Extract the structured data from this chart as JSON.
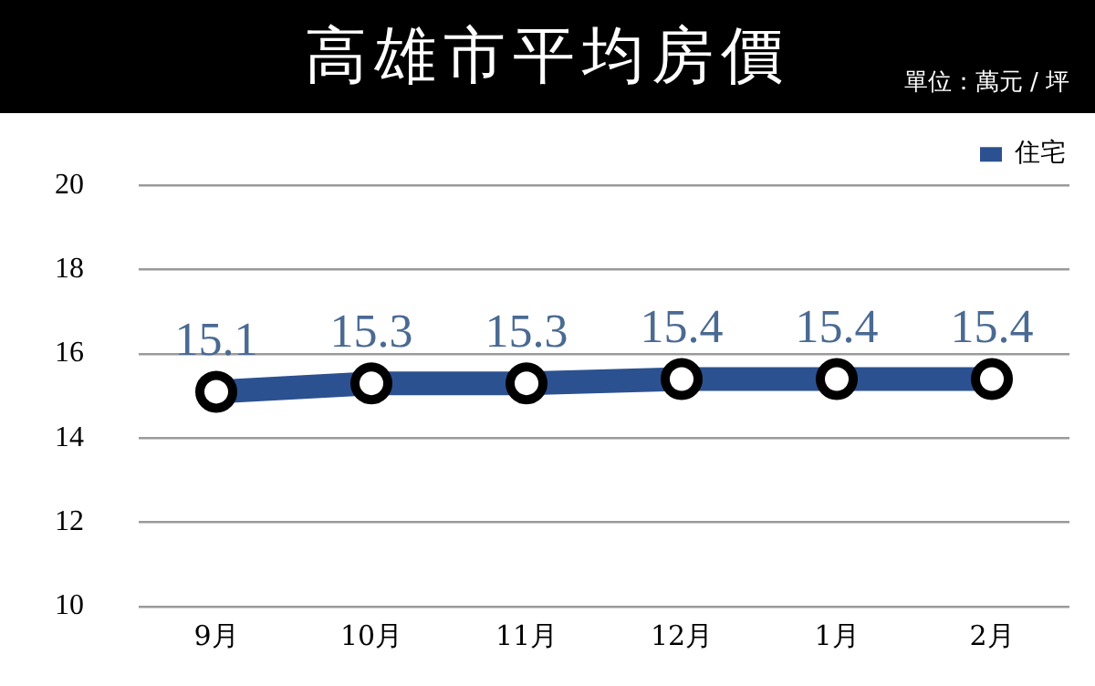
{
  "chart_data": {
    "type": "line",
    "title": "高雄市平均房價",
    "subtitle": "單位：萬元 / 坪",
    "categories": [
      "9月",
      "10月",
      "11月",
      "12月",
      "1月",
      "2月"
    ],
    "series": [
      {
        "name": "住宅",
        "color": "#2b5190",
        "values": [
          15.1,
          15.3,
          15.3,
          15.4,
          15.4,
          15.4
        ]
      }
    ],
    "ylim": [
      10,
      20
    ],
    "yticks": [
      10,
      12,
      14,
      16,
      18,
      20
    ],
    "grid": "y",
    "legend": "top right",
    "marker": "circle",
    "line_style": "solid",
    "data_labels": true
  }
}
